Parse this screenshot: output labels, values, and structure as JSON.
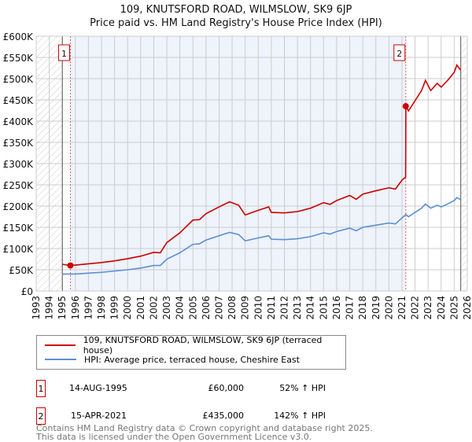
{
  "chart_data": {
    "type": "line",
    "title": "109, KNUTSFORD ROAD, WILMSLOW, SK9 6JP",
    "subtitle": "Price paid vs. HM Land Registry's House Price Index (HPI)",
    "xlim": [
      1993,
      2026
    ],
    "ylim": [
      0,
      600000
    ],
    "y_ticks": [
      0,
      50000,
      100000,
      150000,
      200000,
      250000,
      300000,
      350000,
      400000,
      450000,
      500000,
      550000,
      600000
    ],
    "y_tick_labels": [
      "£0",
      "£50K",
      "£100K",
      "£150K",
      "£200K",
      "£250K",
      "£300K",
      "£350K",
      "£400K",
      "£450K",
      "£500K",
      "£550K",
      "£600K"
    ],
    "x_ticks": [
      1993,
      1994,
      1995,
      1996,
      1997,
      1998,
      1999,
      2000,
      2001,
      2002,
      2003,
      2004,
      2005,
      2006,
      2007,
      2008,
      2009,
      2010,
      2011,
      2012,
      2013,
      2014,
      2015,
      2016,
      2017,
      2018,
      2019,
      2020,
      2021,
      2022,
      2023,
      2024,
      2025,
      2026
    ],
    "x_tick_labels": [
      "1993",
      "1994",
      "1995",
      "1996",
      "1997",
      "1998",
      "1999",
      "2000",
      "2001",
      "2002",
      "2003",
      "2004",
      "2005",
      "2006",
      "2007",
      "2008",
      "2009",
      "2010",
      "2011",
      "2012",
      "2013",
      "2014",
      "2015",
      "2016",
      "2017",
      "2018",
      "2019",
      "2020",
      "2021",
      "2022",
      "2023",
      "2024",
      "2025",
      "2026"
    ],
    "grid": true,
    "series": [
      {
        "name": "109, KNUTSFORD ROAD, WILMSLOW, SK9 6JP (terraced house)",
        "color": "#cc0000",
        "x": [
          1995,
          1995.6,
          1996,
          1997,
          1998,
          1999,
          2000,
          2001,
          2002,
          2002.5,
          2003,
          2004,
          2005,
          2005.5,
          2006,
          2007,
          2007.8,
          2008.5,
          2009,
          2010,
          2010.8,
          2011,
          2012,
          2013,
          2014,
          2015,
          2015.5,
          2016,
          2017,
          2017.5,
          2018,
          2019,
          2020,
          2020.5,
          2021,
          2021.28,
          2021.3,
          2021.5,
          2022,
          2022.5,
          2022.8,
          2023.2,
          2023.7,
          2024,
          2024.5,
          2025,
          2025.2,
          2025.5
        ],
        "y": [
          63000,
          60000,
          61000,
          64000,
          67000,
          71000,
          76000,
          82000,
          91000,
          90000,
          114000,
          137000,
          167000,
          168000,
          182000,
          198000,
          210000,
          202000,
          179000,
          190000,
          198000,
          185000,
          184000,
          187000,
          195000,
          208000,
          204000,
          213000,
          225000,
          216000,
          228000,
          236000,
          243000,
          240000,
          261000,
          268000,
          435000,
          424000,
          448000,
          472000,
          496000,
          472000,
          489000,
          480000,
          496000,
          515000,
          532000,
          520000
        ]
      },
      {
        "name": "HPI: Average price, terraced house, Cheshire East",
        "color": "#5b8fd4",
        "x": [
          1995,
          1996,
          1997,
          1998,
          1999,
          2000,
          2001,
          2002,
          2002.5,
          2003,
          2004,
          2005,
          2005.5,
          2006,
          2007,
          2007.8,
          2008.5,
          2009,
          2010,
          2010.8,
          2011,
          2012,
          2013,
          2014,
          2015,
          2015.5,
          2016,
          2017,
          2017.5,
          2018,
          2019,
          2020,
          2020.5,
          2021,
          2021.3,
          2021.5,
          2022,
          2022.5,
          2022.8,
          2023.2,
          2023.7,
          2024,
          2024.5,
          2025,
          2025.2,
          2025.5
        ],
        "y": [
          40000,
          40000,
          42000,
          44000,
          47000,
          50000,
          54000,
          60000,
          60000,
          75000,
          90000,
          110000,
          111000,
          120000,
          130000,
          138000,
          133000,
          118000,
          125000,
          130000,
          122000,
          121000,
          123000,
          128000,
          137000,
          134000,
          140000,
          148000,
          142000,
          150000,
          155000,
          160000,
          158000,
          172000,
          180000,
          175000,
          185000,
          195000,
          205000,
          195000,
          202000,
          198000,
          205000,
          213000,
          220000,
          215000
        ]
      }
    ],
    "sales": [
      {
        "label": "1",
        "x": 1995.62,
        "y": 60000,
        "date": "14-AUG-1995",
        "price": "£60,000",
        "hpi": "52% ↑ HPI"
      },
      {
        "label": "2",
        "x": 2021.29,
        "y": 435000,
        "date": "15-APR-2021",
        "price": "£435,000",
        "hpi": "142% ↑ HPI"
      }
    ],
    "legend": "bottom"
  },
  "footer": {
    "line1": "Contains HM Land Registry data © Crown copyright and database right 2025.",
    "line2": "This data is licensed under the Open Government Licence v3.0."
  }
}
